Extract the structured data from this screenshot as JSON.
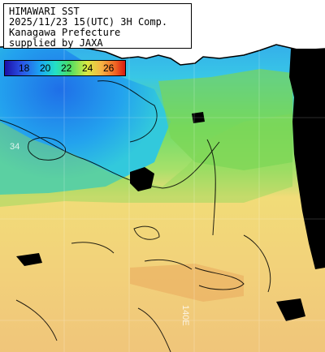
{
  "map": {
    "title_lines": [
      "HIMAWARI SST",
      "2025/11/23 15(UTC) 3H Comp.",
      "Kanagawa Prefecture",
      "supplied by JAXA"
    ],
    "color_scale": {
      "ticks": [
        "18",
        "20",
        "22",
        "24",
        "26"
      ]
    },
    "grid_labels": [
      "34",
      "140E"
    ],
    "colors": {
      "land": "#ffffff",
      "cloud_missing": "#000000",
      "contour": "#000000"
    }
  }
}
